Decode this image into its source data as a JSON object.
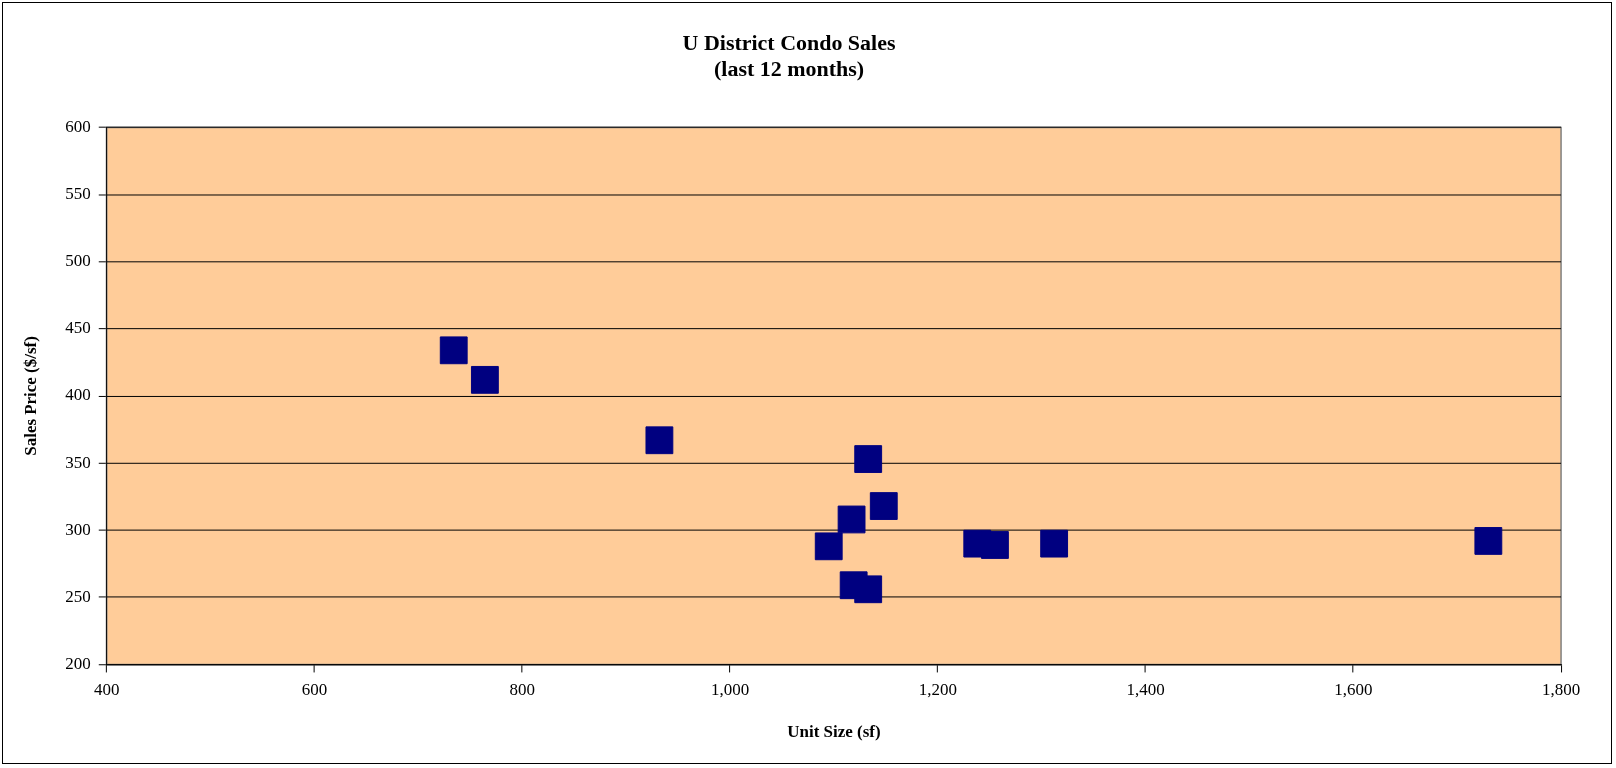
{
  "chart_data": {
    "type": "scatter",
    "title": [
      "U District Condo Sales",
      "(last 12 months)"
    ],
    "xlabel": "Unit Size (sf)",
    "ylabel": "Sales Price ($/sf)",
    "x": [
      734,
      764,
      932,
      1133,
      1148,
      1117,
      1095,
      1119,
      1133,
      1228,
      1238,
      1255,
      1312,
      1730
    ],
    "values": [
      434,
      412,
      367,
      353,
      318,
      308,
      288,
      259,
      256,
      null,
      290,
      289,
      290,
      292
    ],
    "color": "#000080",
    "marker": "square",
    "grid": "y",
    "legend": false,
    "xlim": [
      400,
      1800
    ],
    "xticks": [
      400,
      600,
      800,
      {
        "value": 1000,
        "label": "1,000"
      },
      {
        "value": 1200,
        "label": "1,200"
      },
      {
        "value": 1400,
        "label": "1,400"
      },
      {
        "value": 1600,
        "label": "1,600"
      },
      {
        "value": 1800,
        "label": "1,800"
      }
    ],
    "ylim": [
      200,
      600
    ],
    "yticks": [
      200,
      250,
      300,
      350,
      400,
      450,
      500,
      550,
      600
    ]
  }
}
